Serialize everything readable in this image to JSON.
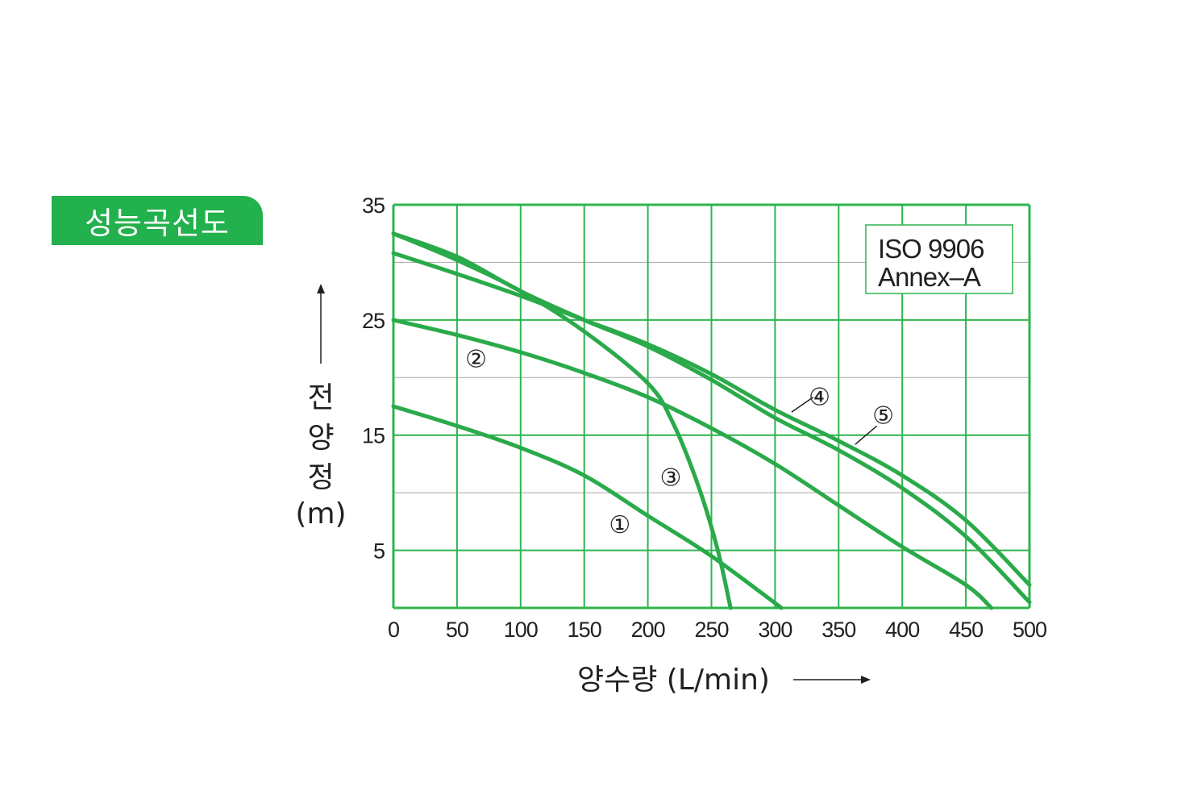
{
  "badge": {
    "label": "성능곡선도"
  },
  "colors": {
    "accent": "#23b14d",
    "curve": "#2aaa4a",
    "grid_major": "#2fb44d",
    "grid_minor": "#a8a8a8",
    "text": "#231f20"
  },
  "chart_data": {
    "type": "line",
    "xlabel": "양수량 (L/min)",
    "ylabel": [
      "전",
      "양",
      "정",
      "(m)"
    ],
    "xlim": [
      0,
      500
    ],
    "ylim": [
      0,
      35
    ],
    "x_ticks": [
      "0",
      "50",
      "100",
      "150",
      "200",
      "250",
      "300",
      "350",
      "400",
      "450",
      "500"
    ],
    "y_ticks": [
      {
        "value": 35,
        "label": "35"
      },
      {
        "value": 25,
        "label": "25"
      },
      {
        "value": 15,
        "label": "15"
      },
      {
        "value": 5,
        "label": "5"
      }
    ],
    "grid": true,
    "minor_grid_y": [
      30,
      20,
      10
    ],
    "annotation": [
      "ISO 9906",
      "Annex–A"
    ],
    "series": [
      {
        "name": "①",
        "x": [
          0,
          50,
          100,
          150,
          200,
          250,
          305
        ],
        "y": [
          17.5,
          15.8,
          13.9,
          11.5,
          8.0,
          4.5,
          0
        ]
      },
      {
        "name": "②",
        "x": [
          0,
          50,
          100,
          150,
          200,
          250,
          300,
          350,
          400,
          450,
          470
        ],
        "y": [
          25.0,
          23.7,
          22.2,
          20.4,
          18.3,
          15.6,
          12.5,
          8.9,
          5.3,
          2.0,
          0
        ]
      },
      {
        "name": "③",
        "x": [
          0,
          50,
          100,
          150,
          200,
          220,
          240,
          255,
          265
        ],
        "y": [
          32.5,
          30.2,
          27.5,
          24.0,
          19.5,
          16.0,
          10.5,
          5.0,
          0
        ]
      },
      {
        "name": "④",
        "x": [
          0,
          50,
          100,
          150,
          200,
          250,
          300,
          350,
          400,
          450,
          500
        ],
        "y": [
          32.5,
          30.5,
          27.5,
          25.0,
          22.7,
          19.8,
          16.5,
          13.7,
          10.4,
          6.2,
          0.5
        ]
      },
      {
        "name": "⑤",
        "x": [
          0,
          50,
          100,
          150,
          200,
          250,
          300,
          350,
          400,
          450,
          500
        ],
        "y": [
          30.8,
          29.0,
          27.1,
          25.0,
          22.9,
          20.3,
          17.2,
          14.5,
          11.5,
          7.6,
          2.0
        ]
      }
    ],
    "labels": [
      {
        "text": "①",
        "series": "①",
        "at": [
          178,
          7.2
        ]
      },
      {
        "text": "②",
        "series": "②",
        "at": [
          65,
          21.6
        ]
      },
      {
        "text": "③",
        "series": "③",
        "at": [
          218,
          11.3
        ]
      },
      {
        "text": "④",
        "series": "④",
        "at": [
          335,
          18.3
        ]
      },
      {
        "text": "⑤",
        "series": "⑤",
        "at": [
          385,
          16.7
        ]
      }
    ],
    "leaders": [
      {
        "series": "④",
        "from": [
          313,
          17.0
        ],
        "to": [
          330,
          18.3
        ]
      },
      {
        "series": "⑤",
        "from": [
          363,
          14.2
        ],
        "to": [
          380,
          15.8
        ]
      }
    ]
  }
}
